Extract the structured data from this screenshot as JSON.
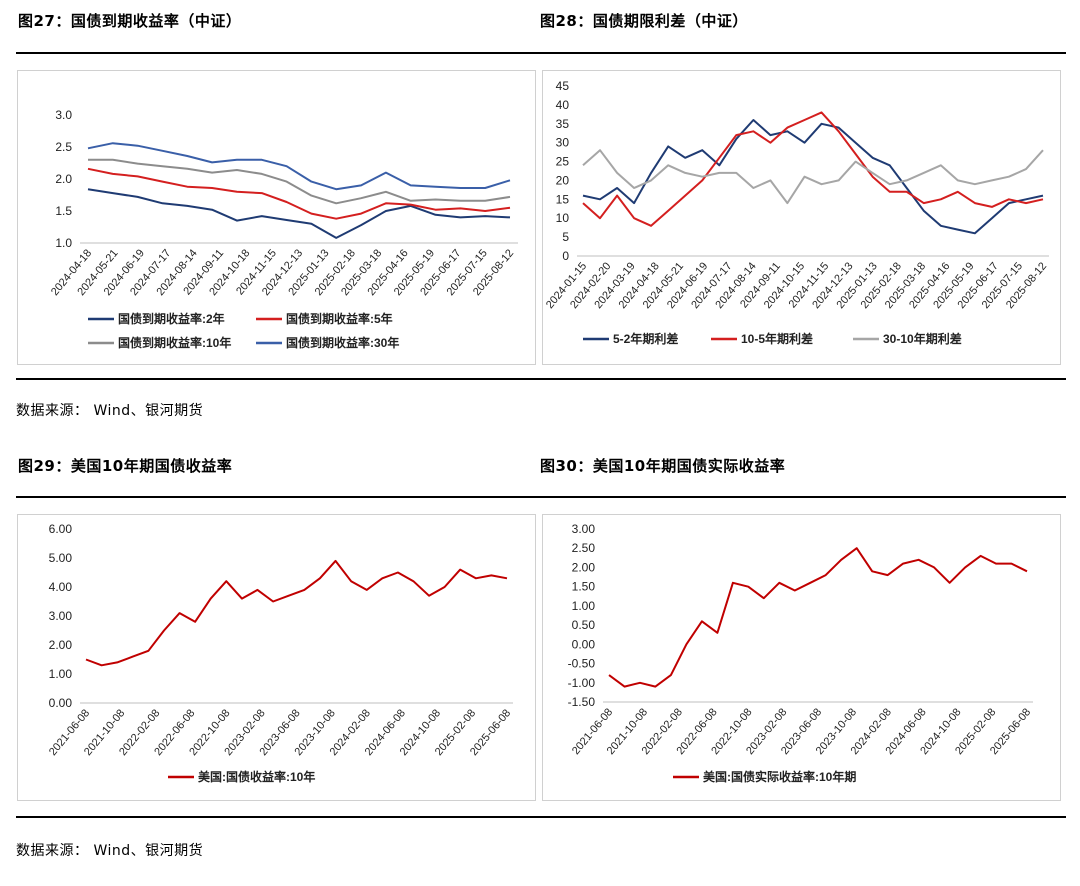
{
  "figures": {
    "fig27_title": "图27：国债到期收益率（中证）",
    "fig28_title": "图28：国债期限利差（中证）",
    "fig29_title": "图29：美国10年期国债收益率",
    "fig30_title": "图30：美国10年期国债实际收益率"
  },
  "sources": {
    "top": "数据来源： Wind、银河期货",
    "bottom": "数据来源： Wind、银河期货"
  },
  "chart_data": [
    {
      "id": "fig27",
      "type": "line",
      "ylim": [
        1.0,
        3.0
      ],
      "yticks": [
        "1.0",
        "1.5",
        "2.0",
        "2.5",
        "3.0"
      ],
      "xticks": [
        "2024-04-18",
        "2024-05-21",
        "2024-06-19",
        "2024-07-17",
        "2024-08-14",
        "2024-09-11",
        "2024-10-18",
        "2024-11-15",
        "2024-12-13",
        "2025-01-13",
        "2025-02-18",
        "2025-03-18",
        "2025-04-16",
        "2025-05-19",
        "2025-06-17",
        "2025-07-15",
        "2025-08-12"
      ],
      "legend_cols": 2,
      "series": [
        {
          "name": "国债到期收益率:2年",
          "color": "#1f3b73",
          "values": [
            1.84,
            1.78,
            1.72,
            1.62,
            1.58,
            1.52,
            1.35,
            1.42,
            1.36,
            1.3,
            1.08,
            1.28,
            1.5,
            1.58,
            1.44,
            1.4,
            1.42,
            1.4
          ]
        },
        {
          "name": "国债到期收益率:5年",
          "color": "#d41f1f",
          "values": [
            2.16,
            2.08,
            2.04,
            1.96,
            1.88,
            1.86,
            1.8,
            1.78,
            1.64,
            1.46,
            1.38,
            1.46,
            1.62,
            1.6,
            1.52,
            1.54,
            1.5,
            1.55
          ]
        },
        {
          "name": "国债到期收益率:10年",
          "color": "#8c8c8c",
          "values": [
            2.3,
            2.3,
            2.24,
            2.2,
            2.16,
            2.1,
            2.14,
            2.08,
            1.96,
            1.74,
            1.62,
            1.7,
            1.8,
            1.66,
            1.68,
            1.66,
            1.66,
            1.72
          ]
        },
        {
          "name": "国债到期收益率:30年",
          "color": "#3a5fa8",
          "values": [
            2.48,
            2.56,
            2.52,
            2.44,
            2.36,
            2.26,
            2.3,
            2.3,
            2.2,
            1.96,
            1.84,
            1.9,
            2.1,
            1.9,
            1.88,
            1.86,
            1.86,
            1.98
          ]
        }
      ]
    },
    {
      "id": "fig28",
      "type": "line",
      "ylim": [
        0,
        45
      ],
      "yticks": [
        "0",
        "5",
        "10",
        "15",
        "20",
        "25",
        "30",
        "35",
        "40",
        "45"
      ],
      "xticks": [
        "2024-01-15",
        "2024-02-20",
        "2024-03-19",
        "2024-04-18",
        "2024-05-21",
        "2024-06-19",
        "2024-07-17",
        "2024-08-14",
        "2024-09-11",
        "2024-10-15",
        "2024-11-15",
        "2024-12-13",
        "2025-01-13",
        "2025-02-18",
        "2025-03-18",
        "2025-04-16",
        "2025-05-19",
        "2025-06-17",
        "2025-07-15",
        "2025-08-12"
      ],
      "legend_cols": 3,
      "series": [
        {
          "name": "5-2年期利差",
          "color": "#1f3b73",
          "values": [
            16,
            15,
            18,
            14,
            22,
            29,
            26,
            28,
            24,
            31,
            36,
            32,
            33,
            30,
            35,
            34,
            30,
            26,
            24,
            18,
            12,
            8,
            7,
            6,
            10,
            14,
            15,
            16
          ]
        },
        {
          "name": "10-5年期利差",
          "color": "#d41f1f",
          "values": [
            14,
            10,
            16,
            10,
            8,
            12,
            16,
            20,
            26,
            32,
            33,
            30,
            34,
            36,
            38,
            33,
            27,
            21,
            17,
            17,
            14,
            15,
            17,
            14,
            13,
            15,
            14,
            15
          ]
        },
        {
          "name": "30-10年期利差",
          "color": "#a6a6a6",
          "values": [
            24,
            28,
            22,
            18,
            20,
            24,
            22,
            21,
            22,
            22,
            18,
            20,
            14,
            21,
            19,
            20,
            25,
            22,
            19,
            20,
            22,
            24,
            20,
            19,
            20,
            21,
            23,
            28
          ]
        }
      ]
    },
    {
      "id": "fig29",
      "type": "line",
      "ylim": [
        0,
        6
      ],
      "yticks": [
        "0.00",
        "1.00",
        "2.00",
        "3.00",
        "4.00",
        "5.00",
        "6.00"
      ],
      "xticks": [
        "2021-06-08",
        "2021-10-08",
        "2022-02-08",
        "2022-06-08",
        "2022-10-08",
        "2023-02-08",
        "2023-06-08",
        "2023-10-08",
        "2024-02-08",
        "2024-06-08",
        "2024-10-08",
        "2025-02-08",
        "2025-06-08"
      ],
      "legend_cols": 1,
      "series": [
        {
          "name": "美国:国债收益率:10年",
          "color": "#c00000",
          "values": [
            1.5,
            1.3,
            1.4,
            1.6,
            1.8,
            2.5,
            3.1,
            2.8,
            3.6,
            4.2,
            3.6,
            3.9,
            3.5,
            3.7,
            3.9,
            4.3,
            4.9,
            4.2,
            3.9,
            4.3,
            4.5,
            4.2,
            3.7,
            4.0,
            4.6,
            4.3,
            4.4,
            4.3
          ]
        }
      ]
    },
    {
      "id": "fig30",
      "type": "line",
      "ylim": [
        -1.5,
        3.0
      ],
      "yticks": [
        "-1.50",
        "-1.00",
        "-0.50",
        "0.00",
        "0.50",
        "1.00",
        "1.50",
        "2.00",
        "2.50",
        "3.00"
      ],
      "xticks": [
        "2021-06-08",
        "2021-10-08",
        "2022-02-08",
        "2022-06-08",
        "2022-10-08",
        "2023-02-08",
        "2023-06-08",
        "2023-10-08",
        "2024-02-08",
        "2024-06-08",
        "2024-10-08",
        "2025-02-08",
        "2025-06-08"
      ],
      "legend_cols": 1,
      "series": [
        {
          "name": "美国:国债实际收益率:10年期",
          "color": "#c00000",
          "values": [
            -0.8,
            -1.1,
            -1.0,
            -1.1,
            -0.8,
            0.0,
            0.6,
            0.3,
            1.6,
            1.5,
            1.2,
            1.6,
            1.4,
            1.6,
            1.8,
            2.2,
            2.5,
            1.9,
            1.8,
            2.1,
            2.2,
            2.0,
            1.6,
            2.0,
            2.3,
            2.1,
            2.1,
            1.9
          ]
        }
      ]
    }
  ]
}
